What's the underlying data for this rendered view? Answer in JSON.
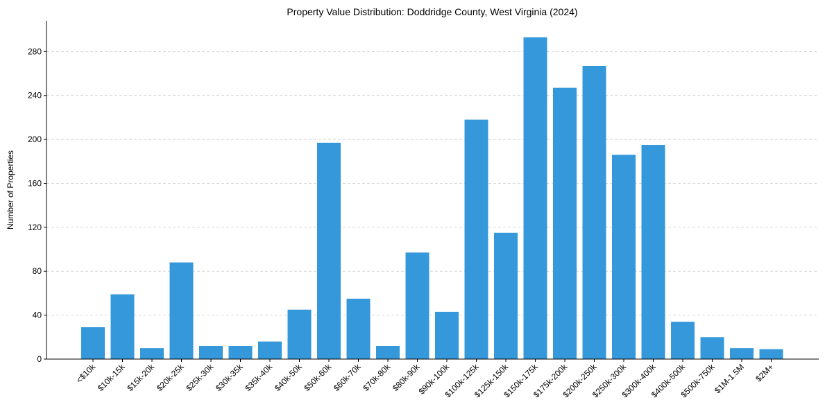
{
  "chart_data": {
    "type": "bar",
    "title": "Property Value Distribution: Doddridge County, West Virginia (2024)",
    "xlabel": "",
    "ylabel": "Number of Properties",
    "ylim": [
      0,
      308
    ],
    "yticks": [
      0,
      40,
      80,
      120,
      160,
      200,
      240,
      280
    ],
    "grid": "y-dashed",
    "bar_color": "#3498db",
    "categories": [
      "<$10k",
      "$10k-15k",
      "$15k-20k",
      "$20k-25k",
      "$25k-30k",
      "$30k-35k",
      "$35k-40k",
      "$40k-50k",
      "$50k-60k",
      "$60k-70k",
      "$70k-80k",
      "$80k-90k",
      "$90k-100k",
      "$100k-125k",
      "$125k-150k",
      "$150k-175k",
      "$175k-200k",
      "$200k-250k",
      "$250k-300k",
      "$300k-400k",
      "$400k-500k",
      "$500k-750k",
      "$1M-1.5M",
      "$2M+"
    ],
    "values": [
      29,
      59,
      10,
      88,
      12,
      12,
      16,
      45,
      197,
      55,
      12,
      97,
      43,
      218,
      115,
      293,
      247,
      267,
      186,
      195,
      34,
      20,
      10,
      9
    ]
  }
}
